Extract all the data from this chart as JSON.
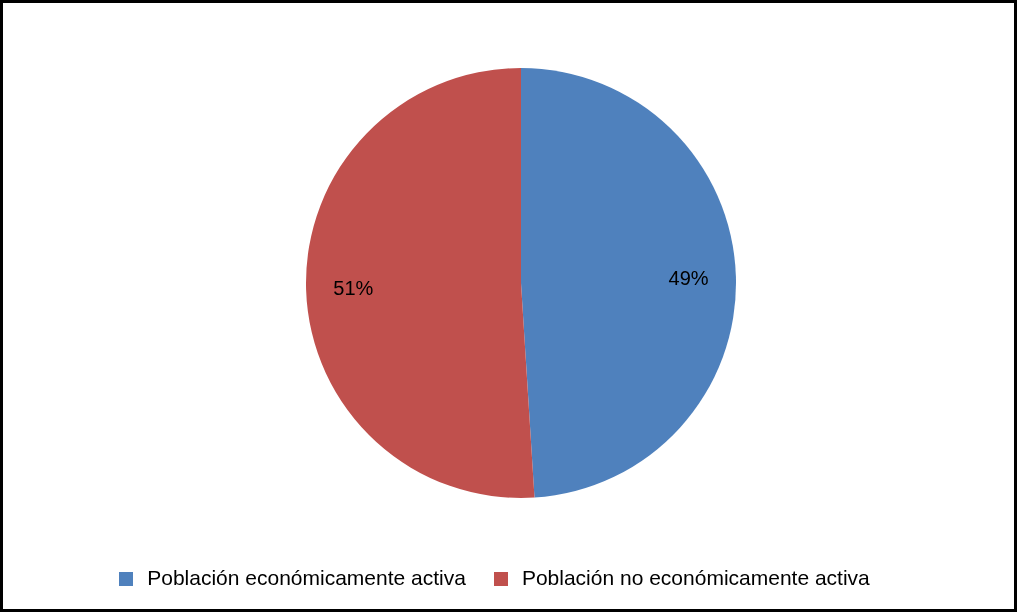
{
  "chart_data": {
    "type": "pie",
    "categories": [
      "Población económicamente activa",
      "Población no económicamente activa"
    ],
    "values": [
      49,
      51
    ],
    "colors": [
      "#4f81bd",
      "#c0504d"
    ],
    "value_labels": [
      "49%",
      "51%"
    ],
    "legend": "bottom"
  }
}
